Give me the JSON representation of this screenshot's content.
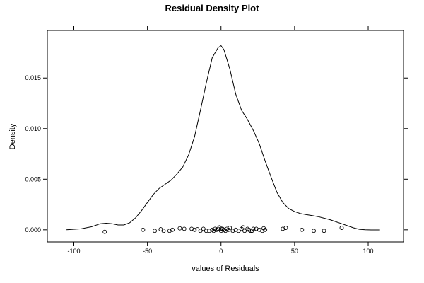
{
  "chart_data": {
    "type": "line",
    "title": "Residual Density Plot",
    "xlabel": "values of Residuals",
    "ylabel": "Density",
    "xlim": [
      -118,
      124
    ],
    "ylim": [
      -0.0012,
      0.0197
    ],
    "xticks": [
      -100,
      -50,
      0,
      50,
      100
    ],
    "yticks": [
      0.0,
      0.005,
      0.01,
      0.015
    ],
    "ytick_labels": [
      "0.000",
      "0.005",
      "0.010",
      "0.015"
    ],
    "grid": false,
    "series": [
      {
        "kind": "density-line",
        "x": [
          -105,
          -95,
          -88,
          -82,
          -78,
          -74,
          -70,
          -66,
          -62,
          -58,
          -54,
          -50,
          -46,
          -42,
          -38,
          -34,
          -30,
          -26,
          -22,
          -18,
          -14,
          -10,
          -6,
          -2,
          0,
          2,
          6,
          10,
          14,
          18,
          22,
          26,
          30,
          34,
          38,
          42,
          46,
          50,
          54,
          58,
          62,
          66,
          70,
          74,
          78,
          82,
          86,
          90,
          94,
          98,
          102,
          108
        ],
        "y": [
          0.0,
          0.0001,
          0.0003,
          0.0006,
          0.00065,
          0.0006,
          0.00048,
          0.00048,
          0.0007,
          0.0012,
          0.0019,
          0.0027,
          0.0035,
          0.0041,
          0.0045,
          0.0049,
          0.0055,
          0.0062,
          0.0074,
          0.0092,
          0.0118,
          0.0145,
          0.017,
          0.018,
          0.0182,
          0.0178,
          0.0159,
          0.0134,
          0.0118,
          0.0109,
          0.0098,
          0.0085,
          0.0068,
          0.0052,
          0.0037,
          0.0027,
          0.0021,
          0.0018,
          0.0016,
          0.0015,
          0.0014,
          0.0013,
          0.00115,
          0.001,
          0.0008,
          0.0006,
          0.0004,
          0.0002,
          5e-05,
          0.0,
          -1e-05,
          -1e-05
        ]
      },
      {
        "kind": "points",
        "x": [
          -79,
          -53,
          -45,
          -41,
          -39,
          -35,
          -33,
          -28,
          -25,
          -20,
          -18,
          -16,
          -14,
          -12,
          -10,
          -8,
          -6,
          -5,
          -4,
          -3,
          -2,
          -1,
          0,
          0,
          1,
          2,
          3,
          4,
          5,
          6,
          8,
          10,
          12,
          14,
          15,
          16,
          18,
          19,
          20,
          21,
          22,
          24,
          26,
          28,
          29,
          30,
          42,
          44,
          55,
          63,
          70,
          82
        ],
        "y": [
          -0.0002,
          0.0,
          -0.0001,
          5e-05,
          -0.0001,
          -0.0001,
          0.0,
          0.00015,
          0.0001,
          0.0001,
          0.0,
          5e-05,
          -0.0001,
          0.0001,
          -0.0001,
          -0.0001,
          0.0,
          -0.0001,
          0.0001,
          0.0,
          0.0001,
          0.00025,
          0.0001,
          -0.0001,
          0.0001,
          0.0,
          -0.0001,
          0.0001,
          0.0,
          0.0002,
          -0.0001,
          0.0,
          -0.0001,
          0.0001,
          0.00025,
          -0.0001,
          0.0001,
          0.0,
          -0.0001,
          -0.0001,
          0.0001,
          0.0001,
          0.0,
          -0.0001,
          0.00015,
          0.0,
          0.0001,
          0.0002,
          0.0,
          -0.0001,
          -0.0001,
          0.0002
        ]
      }
    ]
  }
}
